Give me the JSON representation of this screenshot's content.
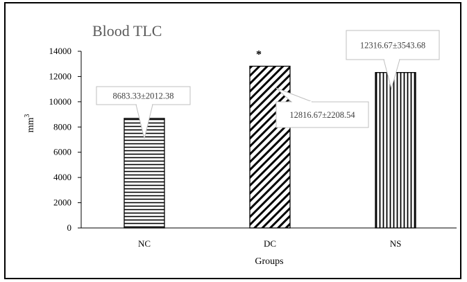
{
  "chart_data": {
    "type": "bar",
    "title": "Blood TLC",
    "xlabel": "Groups",
    "ylabel": "mm",
    "ylabel_superscript": "3",
    "ylim": [
      0,
      14000
    ],
    "yticks": [
      "0",
      "2000",
      "4000",
      "6000",
      "8000",
      "10000",
      "12000",
      "14000"
    ],
    "categories": [
      "NC",
      "DC",
      "NS"
    ],
    "values": [
      8683.33,
      12816.67,
      12316.67
    ],
    "annotations": [
      "8683.33±2012.38",
      "12816.67±2208.54",
      "12316.67±3543.68"
    ],
    "significance": [
      "",
      "*",
      ""
    ],
    "patterns": [
      "horizontal",
      "diagonal",
      "vertical"
    ],
    "grid": false,
    "legend": "none"
  }
}
